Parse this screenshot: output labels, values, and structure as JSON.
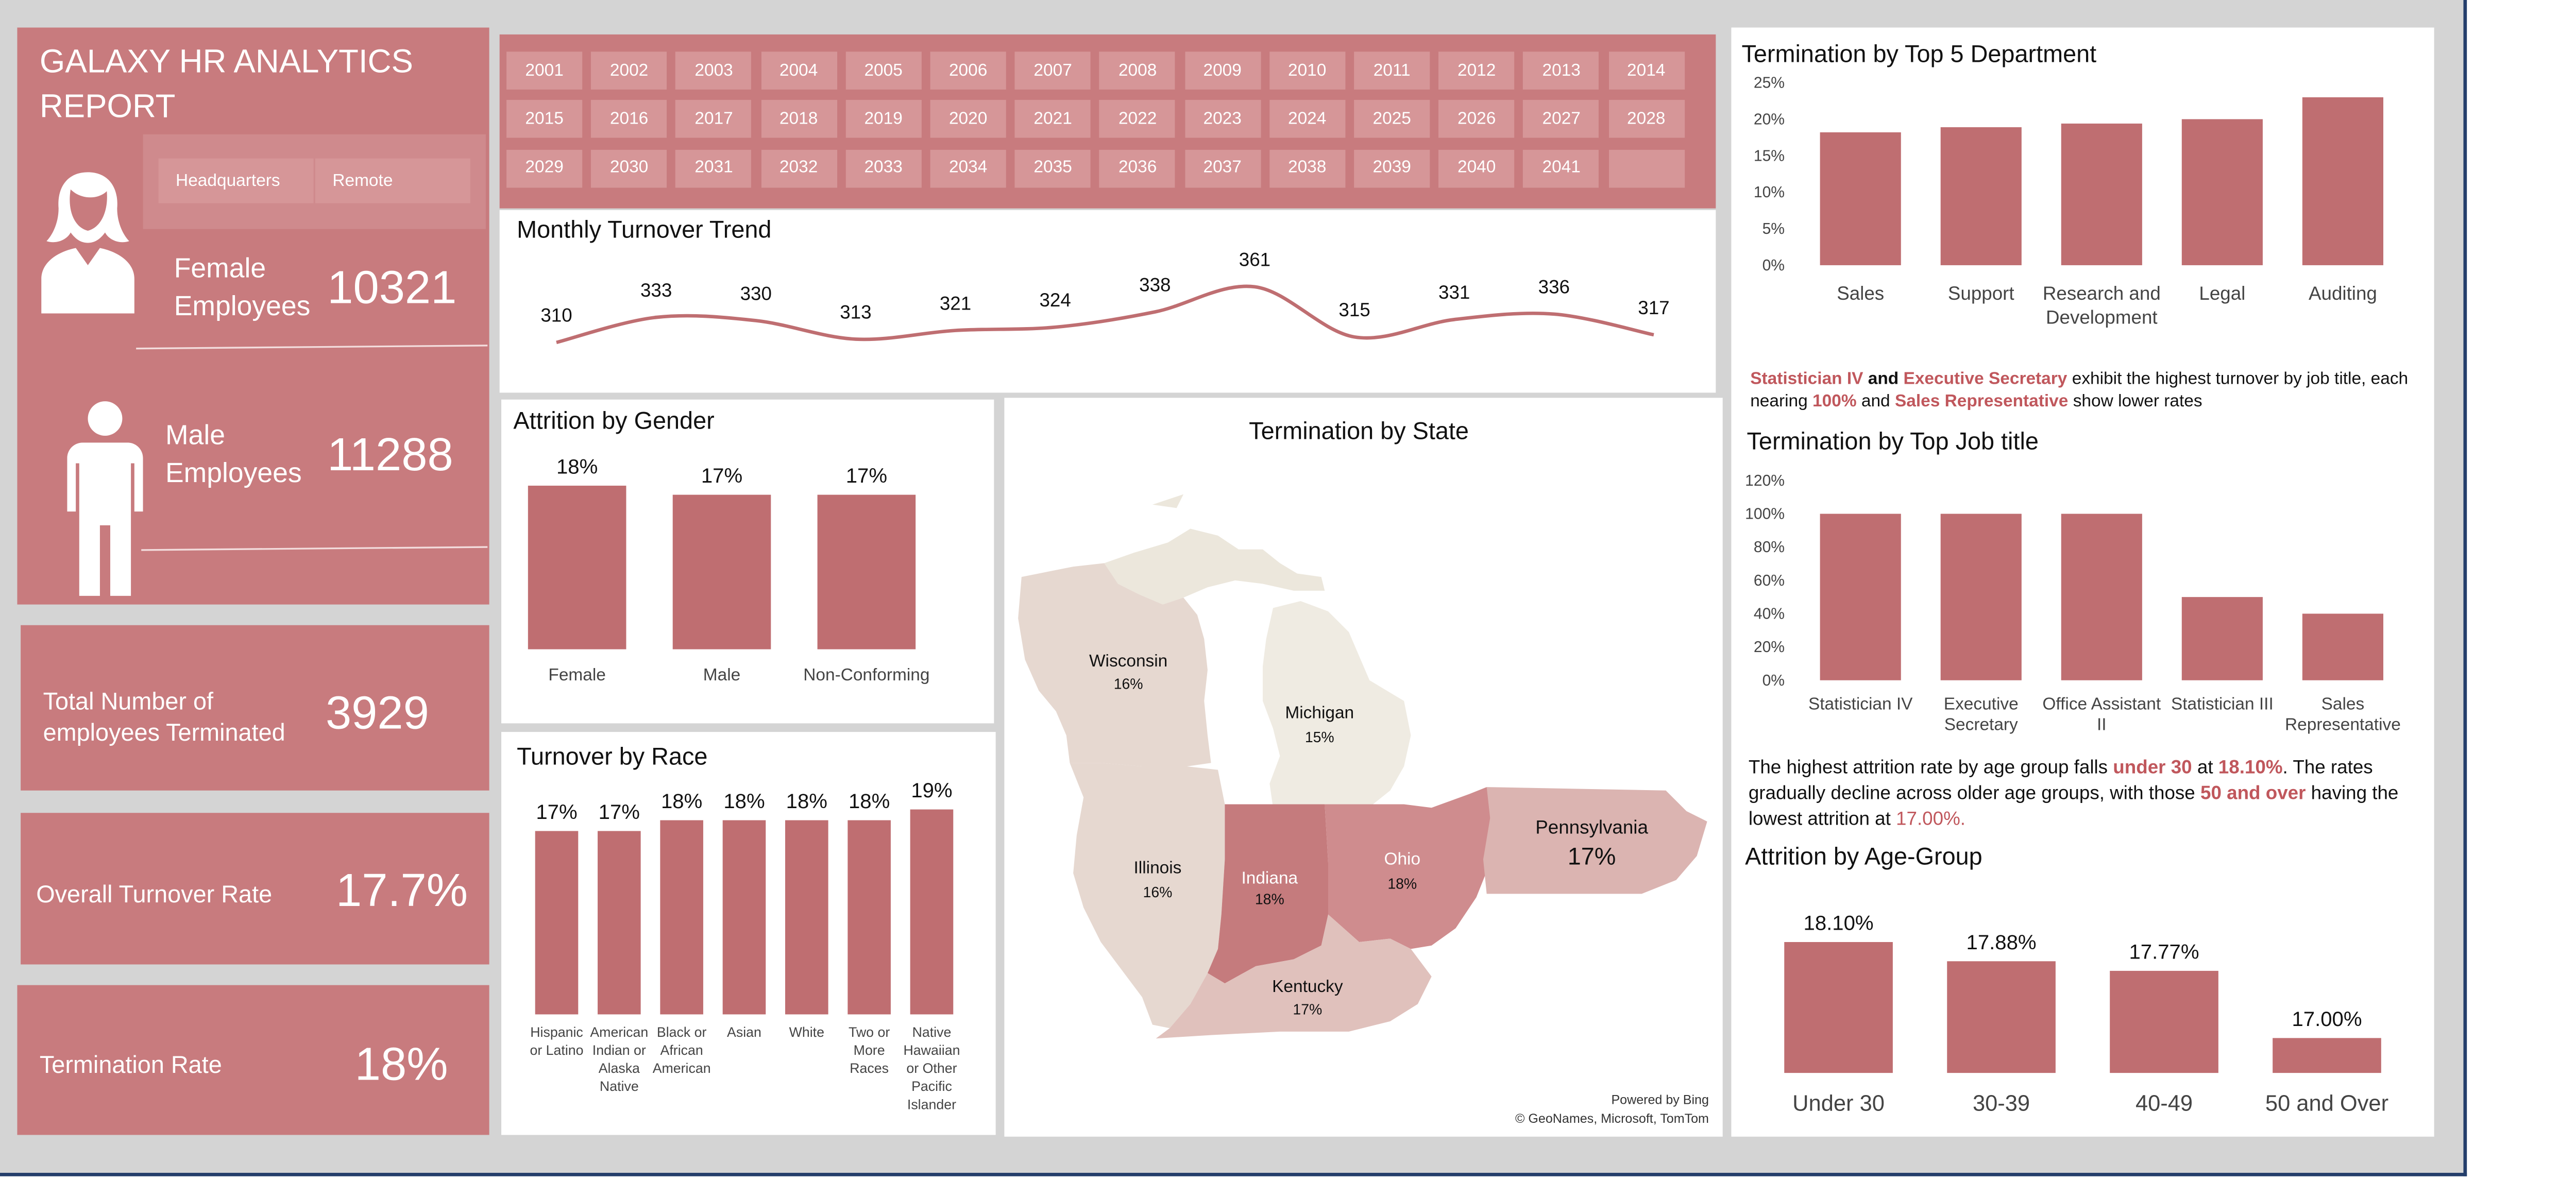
{
  "colors": {
    "rose": "#c87b7e",
    "bar": "#bf6e71",
    "slicer": "#d69698",
    "panel_bg": "#d4d4d4",
    "accent_text": "#c0575c"
  },
  "report": {
    "title_line1": "GALAXY HR ANALYTICS",
    "title_line2": "REPORT",
    "location_buttons": [
      "Headquarters",
      "Remote"
    ]
  },
  "kpis": {
    "female": {
      "label_line1": "Female",
      "label_line2": "Employees",
      "value": "10321",
      "icon": "female-person-icon"
    },
    "male": {
      "label_line1": "Male",
      "label_line2": "Employees",
      "value": "11288",
      "icon": "male-person-icon"
    },
    "terminated": {
      "label_line1": "Total Number of",
      "label_line2": "employees Terminated",
      "value": "3929"
    },
    "turnover": {
      "label": "Overall Turnover Rate",
      "value": "17.7%"
    },
    "termination": {
      "label": "Termination Rate",
      "value": "18%"
    }
  },
  "years": [
    "2001",
    "2002",
    "2003",
    "2004",
    "2005",
    "2006",
    "2007",
    "2008",
    "2009",
    "2010",
    "2011",
    "2012",
    "2013",
    "2014",
    "2015",
    "2016",
    "2017",
    "2018",
    "2019",
    "2020",
    "2021",
    "2022",
    "2023",
    "2024",
    "2025",
    "2026",
    "2027",
    "2028",
    "2029",
    "2030",
    "2031",
    "2032",
    "2033",
    "2034",
    "2035",
    "2036",
    "2037",
    "2038",
    "2039",
    "2040",
    "2041",
    ""
  ],
  "monthly": {
    "title": "Monthly Turnover Trend",
    "chart_data": {
      "type": "line",
      "values": [
        310,
        333,
        330,
        313,
        321,
        324,
        338,
        361,
        315,
        331,
        336,
        317
      ],
      "data_labels": [
        "310",
        "333",
        "330",
        "313",
        "321",
        "324",
        "338",
        "361",
        "315",
        "331",
        "336",
        "317"
      ]
    }
  },
  "gender": {
    "title": "Attrition by Gender",
    "chart_data": {
      "type": "bar",
      "categories": [
        "Female",
        "Male",
        "Non-Conforming"
      ],
      "values": [
        18,
        17,
        17
      ],
      "data_labels": [
        "18%",
        "17%",
        "17%"
      ]
    }
  },
  "race": {
    "title": "Turnover by Race",
    "chart_data": {
      "type": "bar",
      "categories": [
        "Hispanic or Latino",
        "American Indian or Alaska Native",
        "Black or African American",
        "Asian",
        "White",
        "Two or More Races",
        "Native Hawaiian or Other Pacific Islander"
      ],
      "category_lines": [
        [
          "Hispanic",
          "or Latino"
        ],
        [
          "American",
          "Indian or",
          "Alaska",
          "Native"
        ],
        [
          "Black or",
          "African",
          "American"
        ],
        [
          "Asian"
        ],
        [
          "White"
        ],
        [
          "Two or",
          "More",
          "Races"
        ],
        [
          "Native",
          "Hawaiian",
          "or Other",
          "Pacific",
          "Islander"
        ]
      ],
      "values": [
        17,
        17,
        18,
        18,
        18,
        18,
        19
      ],
      "data_labels": [
        "17%",
        "17%",
        "18%",
        "18%",
        "18%",
        "18%",
        "19%"
      ]
    }
  },
  "state": {
    "title": "Termination by State",
    "states": [
      {
        "name": "Wisconsin",
        "value": "16%"
      },
      {
        "name": "Michigan",
        "value": "15%"
      },
      {
        "name": "Illinois",
        "value": "16%"
      },
      {
        "name": "Indiana",
        "value": "18%"
      },
      {
        "name": "Ohio",
        "value": "18%"
      },
      {
        "name": "Pennsylvania",
        "value": "17%"
      },
      {
        "name": "Kentucky",
        "value": "17%"
      }
    ],
    "credit_line1": "Powered by Bing",
    "credit_line2": "© GeoNames, Microsoft, TomTom"
  },
  "department": {
    "title": "Termination  by Top 5 Department",
    "chart_data": {
      "type": "bar",
      "categories": [
        "Sales",
        "Support",
        "Research and Development",
        "Legal",
        "Auditing"
      ],
      "category_lines": [
        [
          "Sales"
        ],
        [
          "Support"
        ],
        [
          "Research and",
          "Development"
        ],
        [
          "Legal"
        ],
        [
          "Auditing"
        ]
      ],
      "values": [
        18.2,
        18.9,
        19.4,
        20.0,
        23.0
      ],
      "ylim": [
        0,
        25
      ],
      "yticks": [
        "0%",
        "5%",
        "10%",
        "15%",
        "20%",
        "25%"
      ]
    }
  },
  "jobtitle_note": {
    "part1": "Statistician IV",
    "part2": " and ",
    "part3": "Executive Secretary",
    "part4": " exhibit the highest turnover by job title, each nearing ",
    "part5": "100%",
    "part6": " and  ",
    "part7": "Sales Representative",
    "part8": " show  lower rates"
  },
  "jobtitle": {
    "title": "Termination by Top Job title",
    "chart_data": {
      "type": "bar",
      "categories": [
        "Statistician IV",
        "Executive Secretary",
        "Office Assistant II",
        "Statistician III",
        "Sales Representative"
      ],
      "category_lines": [
        [
          "Statistician IV"
        ],
        [
          "Executive",
          "Secretary"
        ],
        [
          "Office Assistant",
          "II"
        ],
        [
          "Statistician III"
        ],
        [
          "Sales",
          "Representative"
        ]
      ],
      "values": [
        100,
        100,
        100,
        50,
        40
      ],
      "ylim": [
        0,
        120
      ],
      "yticks": [
        "0%",
        "20%",
        "40%",
        "60%",
        "80%",
        "100%",
        "120%"
      ]
    }
  },
  "age_note": {
    "part1": "The highest attrition rate by age group  falls  ",
    "part2": "under 30",
    "part3": " at ",
    "part4": "18.10%",
    "part5": ". The rates gradually decline across older age groups, with those ",
    "part6": "50 and over",
    "part7": " having the lowest attrition at ",
    "part8": "17.00%."
  },
  "age": {
    "title": "Attrition by Age-Group",
    "chart_data": {
      "type": "bar",
      "categories": [
        "Under 30",
        "30-39",
        "40-49",
        "50 and Over"
      ],
      "values": [
        18.1,
        17.88,
        17.77,
        17.0
      ],
      "data_labels": [
        "18.10%",
        "17.88%",
        "17.77%",
        "17.00%"
      ]
    }
  }
}
